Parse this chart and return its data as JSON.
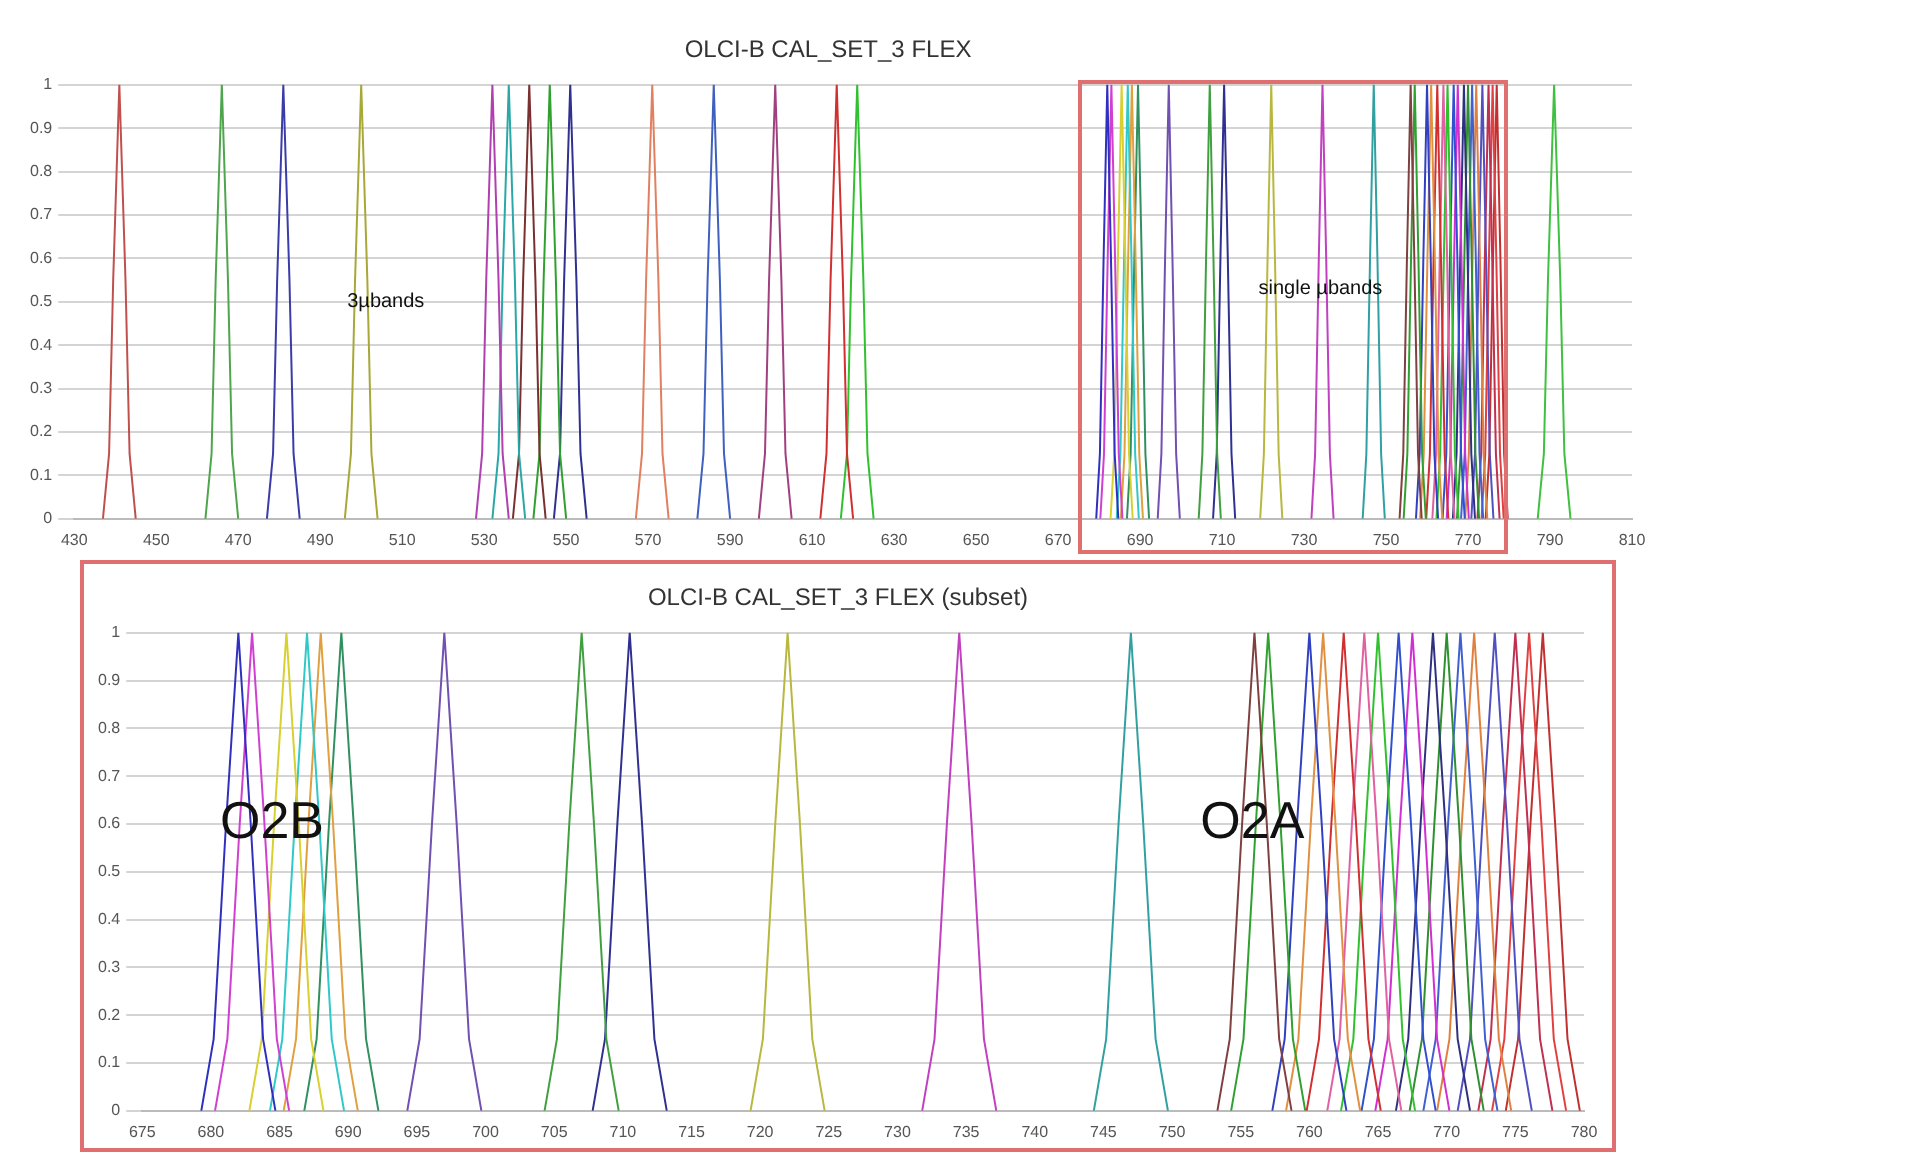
{
  "chart_data": [
    {
      "type": "line",
      "title": "OLCI-B CAL_SET_3 FLEX",
      "marker": "none",
      "grid": "y",
      "xlim": [
        430,
        810
      ],
      "xticks": [
        430,
        450,
        470,
        490,
        510,
        530,
        550,
        570,
        590,
        610,
        630,
        650,
        670,
        690,
        710,
        730,
        750,
        770,
        790,
        810
      ],
      "ylim": [
        0,
        1
      ],
      "yticks": [
        0,
        0.1,
        0.2,
        0.3,
        0.4,
        0.5,
        0.6,
        0.7,
        0.8,
        0.9,
        1
      ],
      "annotations": [
        "3µbands",
        "single µbands"
      ],
      "series": [
        {
          "color": "#c0504d",
          "x": [
            437,
            438.5,
            439.5,
            441,
            442.5,
            443.5,
            445
          ],
          "values": [
            0,
            0.15,
            0.55,
            1,
            0.55,
            0.15,
            0
          ]
        },
        {
          "color": "#4ea54e",
          "x": [
            462,
            463.5,
            464.5,
            466,
            467.5,
            468.5,
            470
          ],
          "values": [
            0,
            0.15,
            0.55,
            1,
            0.55,
            0.15,
            0
          ]
        },
        {
          "color": "#3c3ca8",
          "x": [
            477,
            478.5,
            479.5,
            481,
            482.5,
            483.5,
            485
          ],
          "values": [
            0,
            0.15,
            0.55,
            1,
            0.55,
            0.15,
            0
          ]
        },
        {
          "color": "#a8a838",
          "x": [
            496,
            497.5,
            498.5,
            500,
            501.5,
            502.5,
            504
          ],
          "values": [
            0,
            0.15,
            0.55,
            1,
            0.55,
            0.15,
            0
          ]
        },
        {
          "color": "#b040b0",
          "x": [
            528,
            529.5,
            530.5,
            532,
            533.5,
            534.5,
            536
          ],
          "values": [
            0,
            0.15,
            0.55,
            1,
            0.55,
            0.15,
            0
          ]
        },
        {
          "color": "#2aa8a8",
          "x": [
            532,
            533.5,
            534.5,
            536,
            537.5,
            538.5,
            540
          ],
          "values": [
            0,
            0.15,
            0.55,
            1,
            0.55,
            0.15,
            0
          ]
        },
        {
          "color": "#7a3030",
          "x": [
            537,
            538.5,
            539.5,
            541,
            542.5,
            543.5,
            545
          ],
          "values": [
            0,
            0.15,
            0.55,
            1,
            0.55,
            0.15,
            0
          ]
        },
        {
          "color": "#30a030",
          "x": [
            542,
            543.5,
            544.5,
            546,
            547.5,
            548.5,
            550
          ],
          "values": [
            0,
            0.15,
            0.55,
            1,
            0.55,
            0.15,
            0
          ]
        },
        {
          "color": "#303090",
          "x": [
            547,
            548.5,
            549.5,
            551,
            552.5,
            553.5,
            555
          ],
          "values": [
            0,
            0.15,
            0.55,
            1,
            0.55,
            0.15,
            0
          ]
        },
        {
          "color": "#e08060",
          "x": [
            567,
            568.5,
            569.5,
            571,
            572.5,
            573.5,
            575
          ],
          "values": [
            0,
            0.15,
            0.55,
            1,
            0.55,
            0.15,
            0
          ]
        },
        {
          "color": "#4060c0",
          "x": [
            582,
            583.5,
            584.5,
            586,
            587.5,
            588.5,
            590
          ],
          "values": [
            0,
            0.15,
            0.55,
            1,
            0.55,
            0.15,
            0
          ]
        },
        {
          "color": "#a04080",
          "x": [
            597,
            598.5,
            599.5,
            601,
            602.5,
            603.5,
            605
          ],
          "values": [
            0,
            0.15,
            0.55,
            1,
            0.55,
            0.15,
            0
          ]
        },
        {
          "color": "#d03030",
          "x": [
            612,
            613.5,
            614.5,
            616,
            617.5,
            618.5,
            620
          ],
          "values": [
            0,
            0.15,
            0.55,
            1,
            0.55,
            0.15,
            0
          ]
        },
        {
          "color": "#30c030",
          "x": [
            617,
            618.5,
            619.5,
            621,
            622.5,
            623.5,
            625
          ],
          "values": [
            0,
            0.15,
            0.55,
            1,
            0.55,
            0.15,
            0
          ]
        },
        {
          "color": "#3030c0",
          "x": [
            679.3,
            680.2,
            681.1,
            682,
            682.9,
            683.8,
            684.7
          ],
          "values": [
            0,
            0.15,
            0.6,
            1,
            0.6,
            0.15,
            0
          ]
        },
        {
          "color": "#d040d0",
          "x": [
            680.3,
            681.2,
            682.1,
            683,
            683.9,
            684.8,
            685.7
          ],
          "values": [
            0,
            0.15,
            0.6,
            1,
            0.6,
            0.15,
            0
          ]
        },
        {
          "color": "#d8d030",
          "x": [
            682.8,
            683.7,
            684.6,
            685.5,
            686.4,
            687.3,
            688.2
          ],
          "values": [
            0,
            0.15,
            0.6,
            1,
            0.6,
            0.15,
            0
          ]
        },
        {
          "color": "#30c8c8",
          "x": [
            684.3,
            685.2,
            686.1,
            687,
            687.9,
            688.8,
            689.7
          ],
          "values": [
            0,
            0.15,
            0.6,
            1,
            0.6,
            0.15,
            0
          ]
        },
        {
          "color": "#e0a040",
          "x": [
            685.3,
            686.2,
            687.1,
            688,
            688.9,
            689.8,
            690.7
          ],
          "values": [
            0,
            0.15,
            0.6,
            1,
            0.6,
            0.15,
            0
          ]
        },
        {
          "color": "#309060",
          "x": [
            686.8,
            687.7,
            688.6,
            689.5,
            690.4,
            691.3,
            692.2
          ],
          "values": [
            0,
            0.15,
            0.6,
            1,
            0.6,
            0.15,
            0
          ]
        },
        {
          "color": "#7050b0",
          "x": [
            694.3,
            695.2,
            696.1,
            697,
            697.9,
            698.8,
            699.7
          ],
          "values": [
            0,
            0.15,
            0.6,
            1,
            0.6,
            0.15,
            0
          ]
        },
        {
          "color": "#40a040",
          "x": [
            704.3,
            705.2,
            706.1,
            707,
            707.9,
            708.8,
            709.7
          ],
          "values": [
            0,
            0.15,
            0.6,
            1,
            0.6,
            0.15,
            0
          ]
        },
        {
          "color": "#303090",
          "x": [
            707.8,
            708.7,
            709.6,
            710.5,
            711.4,
            712.3,
            713.2
          ],
          "values": [
            0,
            0.15,
            0.6,
            1,
            0.6,
            0.15,
            0
          ]
        },
        {
          "color": "#b8b840",
          "x": [
            719.3,
            720.2,
            721.1,
            722,
            722.9,
            723.8,
            724.7
          ],
          "values": [
            0,
            0.15,
            0.6,
            1,
            0.6,
            0.15,
            0
          ]
        },
        {
          "color": "#c040c0",
          "x": [
            731.8,
            732.7,
            733.6,
            734.5,
            735.4,
            736.3,
            737.2
          ],
          "values": [
            0,
            0.15,
            0.6,
            1,
            0.6,
            0.15,
            0
          ]
        },
        {
          "color": "#30a0a0",
          "x": [
            744.3,
            745.2,
            746.1,
            747,
            747.9,
            748.8,
            749.7
          ],
          "values": [
            0,
            0.15,
            0.6,
            1,
            0.6,
            0.15,
            0
          ]
        },
        {
          "color": "#804040",
          "x": [
            753.3,
            754.2,
            755.1,
            756,
            756.9,
            757.8,
            758.7
          ],
          "values": [
            0,
            0.15,
            0.6,
            1,
            0.6,
            0.15,
            0
          ]
        },
        {
          "color": "#30a030",
          "x": [
            754.3,
            755.2,
            756.1,
            757,
            757.9,
            758.8,
            759.7
          ],
          "values": [
            0,
            0.15,
            0.6,
            1,
            0.6,
            0.15,
            0
          ]
        },
        {
          "color": "#3040c0",
          "x": [
            757.3,
            758.2,
            759.1,
            760,
            760.9,
            761.8,
            762.7
          ],
          "values": [
            0,
            0.15,
            0.6,
            1,
            0.6,
            0.15,
            0
          ]
        },
        {
          "color": "#e09040",
          "x": [
            758.3,
            759.2,
            760.1,
            761,
            761.9,
            762.8,
            763.7
          ],
          "values": [
            0,
            0.15,
            0.6,
            1,
            0.6,
            0.15,
            0
          ]
        },
        {
          "color": "#d03030",
          "x": [
            759.8,
            760.7,
            761.6,
            762.5,
            763.4,
            764.3,
            765.2
          ],
          "values": [
            0,
            0.15,
            0.6,
            1,
            0.6,
            0.15,
            0
          ]
        },
        {
          "color": "#e060a0",
          "x": [
            761.3,
            762.2,
            763.1,
            764,
            764.9,
            765.8,
            766.7
          ],
          "values": [
            0,
            0.15,
            0.6,
            1,
            0.6,
            0.15,
            0
          ]
        },
        {
          "color": "#30c030",
          "x": [
            762.3,
            763.2,
            764.1,
            765,
            765.9,
            766.8,
            767.7
          ],
          "values": [
            0,
            0.15,
            0.6,
            1,
            0.6,
            0.15,
            0
          ]
        },
        {
          "color": "#3050d0",
          "x": [
            763.8,
            764.7,
            765.6,
            766.5,
            767.4,
            768.3,
            769.2
          ],
          "values": [
            0,
            0.15,
            0.6,
            1,
            0.6,
            0.15,
            0
          ]
        },
        {
          "color": "#d030d0",
          "x": [
            764.8,
            765.7,
            766.6,
            767.5,
            768.4,
            769.3,
            770.2
          ],
          "values": [
            0,
            0.15,
            0.6,
            1,
            0.6,
            0.15,
            0
          ]
        },
        {
          "color": "#303080",
          "x": [
            766.3,
            767.2,
            768.1,
            769,
            769.9,
            770.8,
            771.7
          ],
          "values": [
            0,
            0.15,
            0.6,
            1,
            0.6,
            0.15,
            0
          ]
        },
        {
          "color": "#309030",
          "x": [
            767.3,
            768.2,
            769.1,
            770,
            770.9,
            771.8,
            772.7
          ],
          "values": [
            0,
            0.15,
            0.6,
            1,
            0.6,
            0.15,
            0
          ]
        },
        {
          "color": "#4060d0",
          "x": [
            768.3,
            769.2,
            770.1,
            771,
            771.9,
            772.8,
            773.7
          ],
          "values": [
            0,
            0.15,
            0.6,
            1,
            0.6,
            0.15,
            0
          ]
        },
        {
          "color": "#e08040",
          "x": [
            769.3,
            770.2,
            771.1,
            772,
            772.9,
            773.8,
            774.7
          ],
          "values": [
            0,
            0.15,
            0.6,
            1,
            0.6,
            0.15,
            0
          ]
        },
        {
          "color": "#5050c0",
          "x": [
            770.8,
            771.7,
            772.6,
            773.5,
            774.4,
            775.3,
            776.2
          ],
          "values": [
            0,
            0.15,
            0.6,
            1,
            0.6,
            0.15,
            0
          ]
        },
        {
          "color": "#c03050",
          "x": [
            772.3,
            773.2,
            774.1,
            775,
            775.9,
            776.8,
            777.7
          ],
          "values": [
            0,
            0.15,
            0.6,
            1,
            0.6,
            0.15,
            0
          ]
        },
        {
          "color": "#e04040",
          "x": [
            773.3,
            774.2,
            775.1,
            776,
            776.9,
            777.8,
            778.7
          ],
          "values": [
            0,
            0.15,
            0.6,
            1,
            0.6,
            0.15,
            0
          ]
        },
        {
          "color": "#c03030",
          "x": [
            774.3,
            775.2,
            776.1,
            777,
            777.9,
            778.8,
            779.7
          ],
          "values": [
            0,
            0.15,
            0.6,
            1,
            0.6,
            0.15,
            0
          ]
        },
        {
          "color": "#40c040",
          "x": [
            787,
            788.5,
            789.5,
            791,
            792.5,
            793.5,
            795
          ],
          "values": [
            0,
            0.15,
            0.55,
            1,
            0.55,
            0.15,
            0
          ]
        }
      ]
    },
    {
      "type": "line",
      "title": "OLCI-B CAL_SET_3 FLEX (subset)",
      "marker": "none",
      "grid": "y",
      "xlim": [
        675,
        780
      ],
      "xticks": [
        675,
        680,
        685,
        690,
        695,
        700,
        705,
        710,
        715,
        720,
        725,
        730,
        735,
        740,
        745,
        750,
        755,
        760,
        765,
        770,
        775,
        780
      ],
      "ylim": [
        0,
        1
      ],
      "yticks": [
        0,
        0.1,
        0.2,
        0.3,
        0.4,
        0.5,
        0.6,
        0.7,
        0.8,
        0.9,
        1
      ],
      "annotations": [
        "O2B",
        "O2A"
      ],
      "series": [
        {
          "color": "#3030c0",
          "x": [
            679.3,
            680.2,
            681.1,
            682,
            682.9,
            683.8,
            684.7
          ],
          "values": [
            0,
            0.15,
            0.6,
            1,
            0.6,
            0.15,
            0
          ]
        },
        {
          "color": "#d040d0",
          "x": [
            680.3,
            681.2,
            682.1,
            683,
            683.9,
            684.8,
            685.7
          ],
          "values": [
            0,
            0.15,
            0.6,
            1,
            0.6,
            0.15,
            0
          ]
        },
        {
          "color": "#d8d030",
          "x": [
            682.8,
            683.7,
            684.6,
            685.5,
            686.4,
            687.3,
            688.2
          ],
          "values": [
            0,
            0.15,
            0.6,
            1,
            0.6,
            0.15,
            0
          ]
        },
        {
          "color": "#30c8c8",
          "x": [
            684.3,
            685.2,
            686.1,
            687,
            687.9,
            688.8,
            689.7
          ],
          "values": [
            0,
            0.15,
            0.6,
            1,
            0.6,
            0.15,
            0
          ]
        },
        {
          "color": "#e0a040",
          "x": [
            685.3,
            686.2,
            687.1,
            688,
            688.9,
            689.8,
            690.7
          ],
          "values": [
            0,
            0.15,
            0.6,
            1,
            0.6,
            0.15,
            0
          ]
        },
        {
          "color": "#309060",
          "x": [
            686.8,
            687.7,
            688.6,
            689.5,
            690.4,
            691.3,
            692.2
          ],
          "values": [
            0,
            0.15,
            0.6,
            1,
            0.6,
            0.15,
            0
          ]
        },
        {
          "color": "#7050b0",
          "x": [
            694.3,
            695.2,
            696.1,
            697,
            697.9,
            698.8,
            699.7
          ],
          "values": [
            0,
            0.15,
            0.6,
            1,
            0.6,
            0.15,
            0
          ]
        },
        {
          "color": "#40a040",
          "x": [
            704.3,
            705.2,
            706.1,
            707,
            707.9,
            708.8,
            709.7
          ],
          "values": [
            0,
            0.15,
            0.6,
            1,
            0.6,
            0.15,
            0
          ]
        },
        {
          "color": "#303090",
          "x": [
            707.8,
            708.7,
            709.6,
            710.5,
            711.4,
            712.3,
            713.2
          ],
          "values": [
            0,
            0.15,
            0.6,
            1,
            0.6,
            0.15,
            0
          ]
        },
        {
          "color": "#b8b840",
          "x": [
            719.3,
            720.2,
            721.1,
            722,
            722.9,
            723.8,
            724.7
          ],
          "values": [
            0,
            0.15,
            0.6,
            1,
            0.6,
            0.15,
            0
          ]
        },
        {
          "color": "#c040c0",
          "x": [
            731.8,
            732.7,
            733.6,
            734.5,
            735.4,
            736.3,
            737.2
          ],
          "values": [
            0,
            0.15,
            0.6,
            1,
            0.6,
            0.15,
            0
          ]
        },
        {
          "color": "#30a0a0",
          "x": [
            744.3,
            745.2,
            746.1,
            747,
            747.9,
            748.8,
            749.7
          ],
          "values": [
            0,
            0.15,
            0.6,
            1,
            0.6,
            0.15,
            0
          ]
        },
        {
          "color": "#804040",
          "x": [
            753.3,
            754.2,
            755.1,
            756,
            756.9,
            757.8,
            758.7
          ],
          "values": [
            0,
            0.15,
            0.6,
            1,
            0.6,
            0.15,
            0
          ]
        },
        {
          "color": "#30a030",
          "x": [
            754.3,
            755.2,
            756.1,
            757,
            757.9,
            758.8,
            759.7
          ],
          "values": [
            0,
            0.15,
            0.6,
            1,
            0.6,
            0.15,
            0
          ]
        },
        {
          "color": "#3040c0",
          "x": [
            757.3,
            758.2,
            759.1,
            760,
            760.9,
            761.8,
            762.7
          ],
          "values": [
            0,
            0.15,
            0.6,
            1,
            0.6,
            0.15,
            0
          ]
        },
        {
          "color": "#e09040",
          "x": [
            758.3,
            759.2,
            760.1,
            761,
            761.9,
            762.8,
            763.7
          ],
          "values": [
            0,
            0.15,
            0.6,
            1,
            0.6,
            0.15,
            0
          ]
        },
        {
          "color": "#d03030",
          "x": [
            759.8,
            760.7,
            761.6,
            762.5,
            763.4,
            764.3,
            765.2
          ],
          "values": [
            0,
            0.15,
            0.6,
            1,
            0.6,
            0.15,
            0
          ]
        },
        {
          "color": "#e060a0",
          "x": [
            761.3,
            762.2,
            763.1,
            764,
            764.9,
            765.8,
            766.7
          ],
          "values": [
            0,
            0.15,
            0.6,
            1,
            0.6,
            0.15,
            0
          ]
        },
        {
          "color": "#30c030",
          "x": [
            762.3,
            763.2,
            764.1,
            765,
            765.9,
            766.8,
            767.7
          ],
          "values": [
            0,
            0.15,
            0.6,
            1,
            0.6,
            0.15,
            0
          ]
        },
        {
          "color": "#3050d0",
          "x": [
            763.8,
            764.7,
            765.6,
            766.5,
            767.4,
            768.3,
            769.2
          ],
          "values": [
            0,
            0.15,
            0.6,
            1,
            0.6,
            0.15,
            0
          ]
        },
        {
          "color": "#d030d0",
          "x": [
            764.8,
            765.7,
            766.6,
            767.5,
            768.4,
            769.3,
            770.2
          ],
          "values": [
            0,
            0.15,
            0.6,
            1,
            0.6,
            0.15,
            0
          ]
        },
        {
          "color": "#303080",
          "x": [
            766.3,
            767.2,
            768.1,
            769,
            769.9,
            770.8,
            771.7
          ],
          "values": [
            0,
            0.15,
            0.6,
            1,
            0.6,
            0.15,
            0
          ]
        },
        {
          "color": "#309030",
          "x": [
            767.3,
            768.2,
            769.1,
            770,
            770.9,
            771.8,
            772.7
          ],
          "values": [
            0,
            0.15,
            0.6,
            1,
            0.6,
            0.15,
            0
          ]
        },
        {
          "color": "#4060d0",
          "x": [
            768.3,
            769.2,
            770.1,
            771,
            771.9,
            772.8,
            773.7
          ],
          "values": [
            0,
            0.15,
            0.6,
            1,
            0.6,
            0.15,
            0
          ]
        },
        {
          "color": "#e08040",
          "x": [
            769.3,
            770.2,
            771.1,
            772,
            772.9,
            773.8,
            774.7
          ],
          "values": [
            0,
            0.15,
            0.6,
            1,
            0.6,
            0.15,
            0
          ]
        },
        {
          "color": "#5050c0",
          "x": [
            770.8,
            771.7,
            772.6,
            773.5,
            774.4,
            775.3,
            776.2
          ],
          "values": [
            0,
            0.15,
            0.6,
            1,
            0.6,
            0.15,
            0
          ]
        },
        {
          "color": "#c03050",
          "x": [
            772.3,
            773.2,
            774.1,
            775,
            775.9,
            776.8,
            777.7
          ],
          "values": [
            0,
            0.15,
            0.6,
            1,
            0.6,
            0.15,
            0
          ]
        },
        {
          "color": "#e04040",
          "x": [
            773.3,
            774.2,
            775.1,
            776,
            776.9,
            777.8,
            778.7
          ],
          "values": [
            0,
            0.15,
            0.6,
            1,
            0.6,
            0.15,
            0
          ]
        },
        {
          "color": "#c03030",
          "x": [
            774.3,
            775.2,
            776.1,
            777,
            777.9,
            778.8,
            779.7
          ],
          "values": [
            0,
            0.15,
            0.6,
            1,
            0.6,
            0.15,
            0
          ]
        }
      ]
    }
  ]
}
